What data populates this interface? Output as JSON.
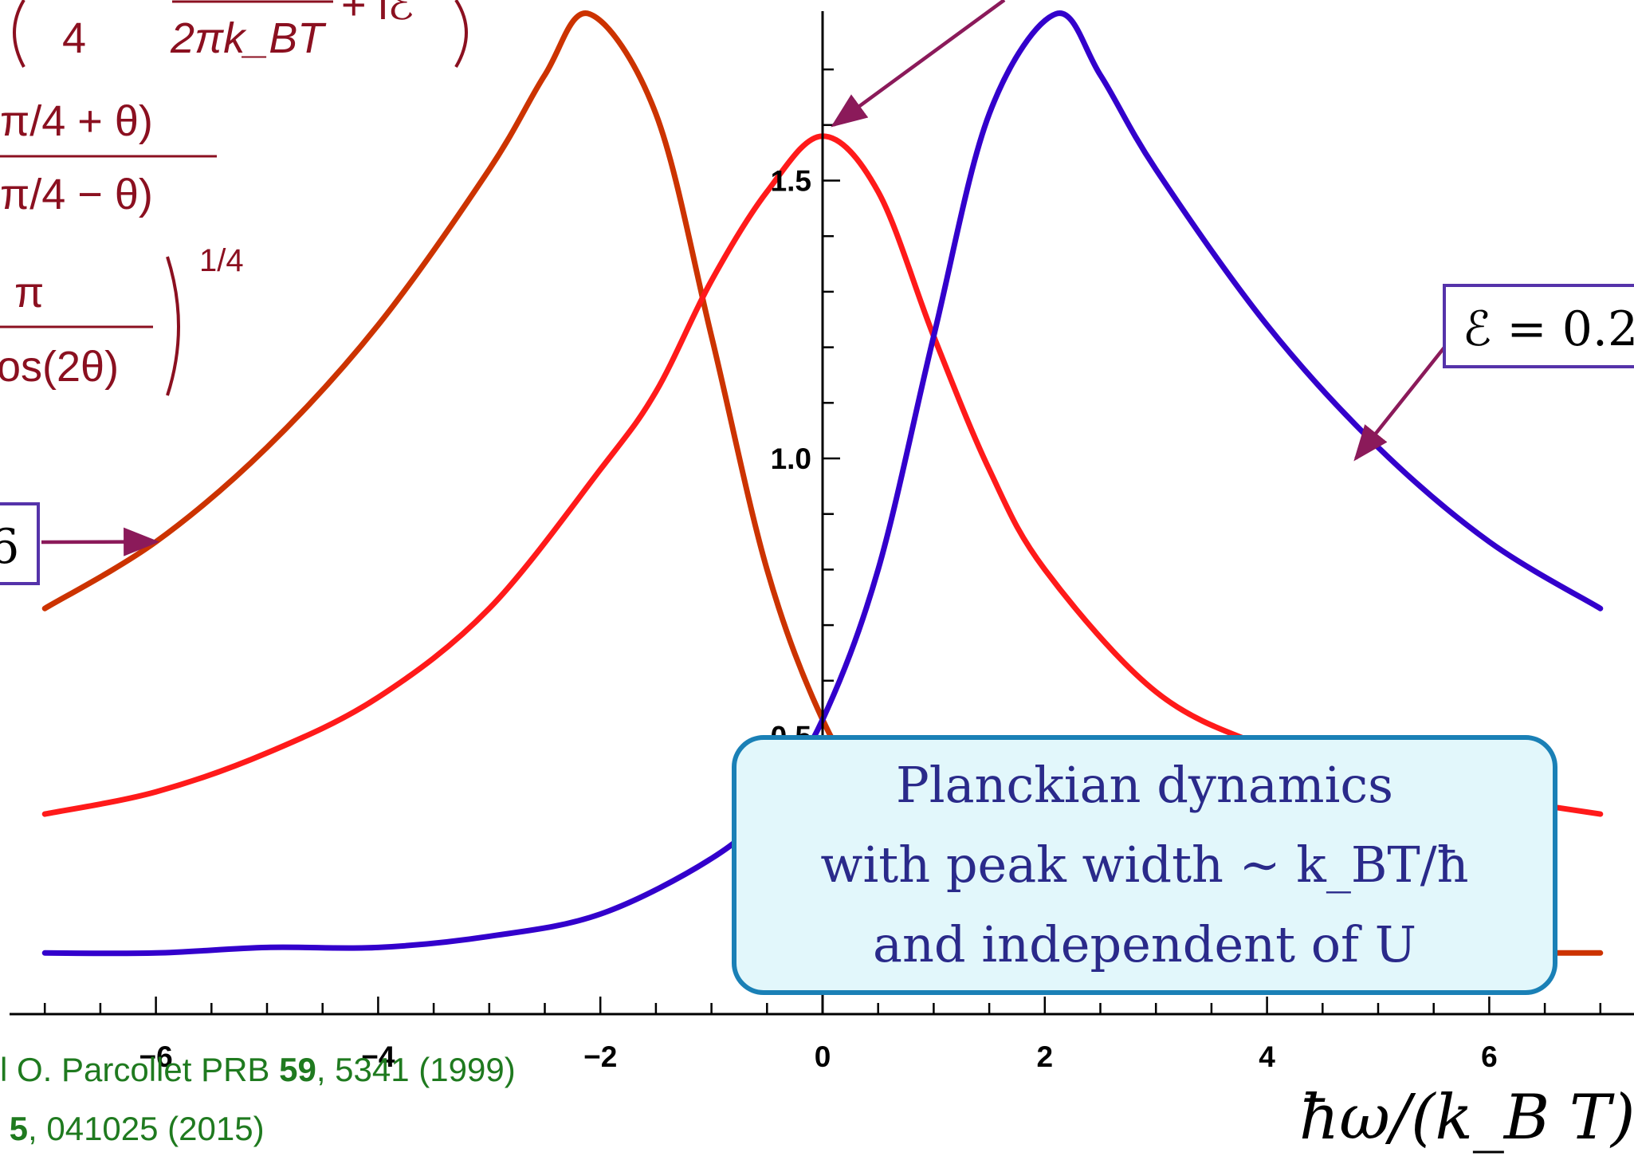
{
  "chart_data": {
    "type": "line",
    "xlabel": "ħω/(k_B T)",
    "xlim": [
      -7,
      7
    ],
    "ylim": [
      0,
      1.8
    ],
    "x_ticks": [
      -6,
      -4,
      -2,
      0,
      2,
      4,
      6
    ],
    "x_tick_labels": [
      "−6",
      "−4",
      "−2",
      "0",
      "2",
      "4",
      "6"
    ],
    "y_ticks": [
      0.5,
      1.0,
      1.5
    ],
    "y_tick_labels": [
      "0.5",
      "1.0",
      "1.5"
    ],
    "series": [
      {
        "color": "#cc3300",
        "x": [
          -7,
          -6,
          -5,
          -4,
          -3,
          -2.5,
          -2.1,
          -1.5,
          -1,
          -0.5,
          0,
          0.5,
          1,
          2,
          3,
          4,
          5,
          6,
          7
        ],
        "y": [
          0.73,
          0.85,
          1.02,
          1.24,
          1.52,
          1.69,
          1.8,
          1.62,
          1.22,
          0.8,
          0.53,
          0.37,
          0.28,
          0.18,
          0.14,
          0.12,
          0.11,
          0.11,
          0.11
        ]
      },
      {
        "color": "#ff1a1a",
        "x": [
          -7,
          -6,
          -5,
          -4,
          -3,
          -2,
          -1.5,
          -1,
          -0.5,
          0,
          0.5,
          1,
          1.5,
          2,
          3,
          4,
          5,
          6,
          7
        ],
        "y": [
          0.36,
          0.4,
          0.47,
          0.57,
          0.73,
          0.98,
          1.12,
          1.32,
          1.48,
          1.58,
          1.48,
          1.22,
          0.98,
          0.8,
          0.58,
          0.48,
          0.42,
          0.39,
          0.36
        ]
      },
      {
        "color": "#3300cc",
        "x": [
          -7,
          -6,
          -5,
          -4,
          -3,
          -2,
          -1,
          -0.5,
          0,
          0.5,
          1,
          1.5,
          2.1,
          2.5,
          3,
          4,
          5,
          6,
          7
        ],
        "y": [
          0.11,
          0.11,
          0.12,
          0.12,
          0.14,
          0.18,
          0.28,
          0.37,
          0.53,
          0.8,
          1.22,
          1.62,
          1.8,
          1.69,
          1.52,
          1.24,
          1.02,
          0.85,
          0.73
        ]
      }
    ],
    "annotations": [
      {
        "text": "ℰ = 0.2",
        "arrow_to": [
          4.8,
          1.0
        ]
      },
      {
        "text": "6",
        "arrow_to": [
          -6.0,
          0.85
        ]
      },
      {
        "text": "",
        "arrow_to": [
          0.1,
          1.6
        ]
      }
    ]
  },
  "formula": {
    "line1_left": "4",
    "line1_den": "2πk_BT",
    "line1_right": "+ iℰ",
    "line2_num": "(π/4 + θ)",
    "line2_den": "(π/4 − θ)",
    "line3_num": "π",
    "line3_den": "os(2θ)",
    "line3_exp": "1/4"
  },
  "callout": {
    "line1": "Planckian dynamics",
    "line2": "with peak width ∼ k_BT/ħ",
    "line3": "and independent of U"
  },
  "references": {
    "line1_prefix": "l O. Parcollet PRB ",
    "line1_volume": "59",
    "line1_suffix": ", 5341 (1999)",
    "line2_prefix": "( ",
    "line2_volume": "5",
    "line2_suffix": ", 041025 (2015)"
  },
  "colors": {
    "axis": "#000000",
    "formula": "#8b1020",
    "arrow": "#8b1a5a",
    "label_box": "#5533aa",
    "callout_fill": "#e2f7fb",
    "callout_border": "#1a80b6",
    "callout_text": "#2a2a8a",
    "reference_text": "#1f7a1f"
  }
}
